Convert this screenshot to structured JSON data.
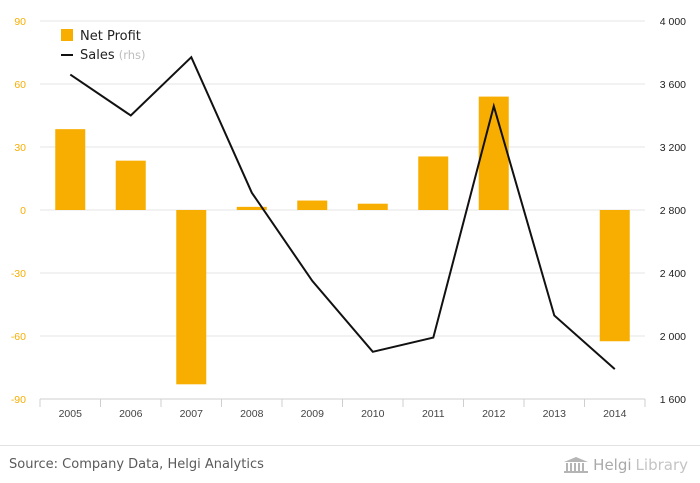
{
  "chart_data": {
    "type": "bar",
    "categories": [
      "2005",
      "2006",
      "2007",
      "2008",
      "2009",
      "2010",
      "2011",
      "2012",
      "2013",
      "2014"
    ],
    "series": [
      {
        "name": "Net Profit",
        "type": "bar",
        "axis": "left",
        "color": "#f7ae00",
        "values": [
          38.5,
          23.5,
          -83,
          1.5,
          4.5,
          3,
          25.5,
          54,
          0,
          -62.5
        ]
      },
      {
        "name": "Sales",
        "name_suffix": "(rhs)",
        "type": "line",
        "axis": "right",
        "color": "#111111",
        "values": [
          3660,
          3400,
          3770,
          2910,
          2350,
          1900,
          1990,
          3460,
          2130,
          1790
        ]
      }
    ],
    "y_left": {
      "min": -90,
      "max": 90,
      "ticks": [
        -90,
        -60,
        -30,
        0,
        30,
        60,
        90
      ],
      "tick_labels": [
        "-90",
        "-60",
        "-30",
        "0",
        "30",
        "60",
        "90"
      ],
      "color": "#f7ae00"
    },
    "y_right": {
      "min": 1600,
      "max": 4000,
      "ticks": [
        1600,
        2000,
        2400,
        2800,
        3200,
        3600,
        4000
      ],
      "tick_labels": [
        "1 600",
        "2 000",
        "2 400",
        "2 800",
        "3 200",
        "3 600",
        "4 000"
      ]
    },
    "legend": {
      "position": "top-left"
    },
    "grid": true
  },
  "footer": {
    "source": "Source: Company Data, Helgi Analytics",
    "brand_part1": "Helgi",
    "brand_part2": "Library"
  }
}
